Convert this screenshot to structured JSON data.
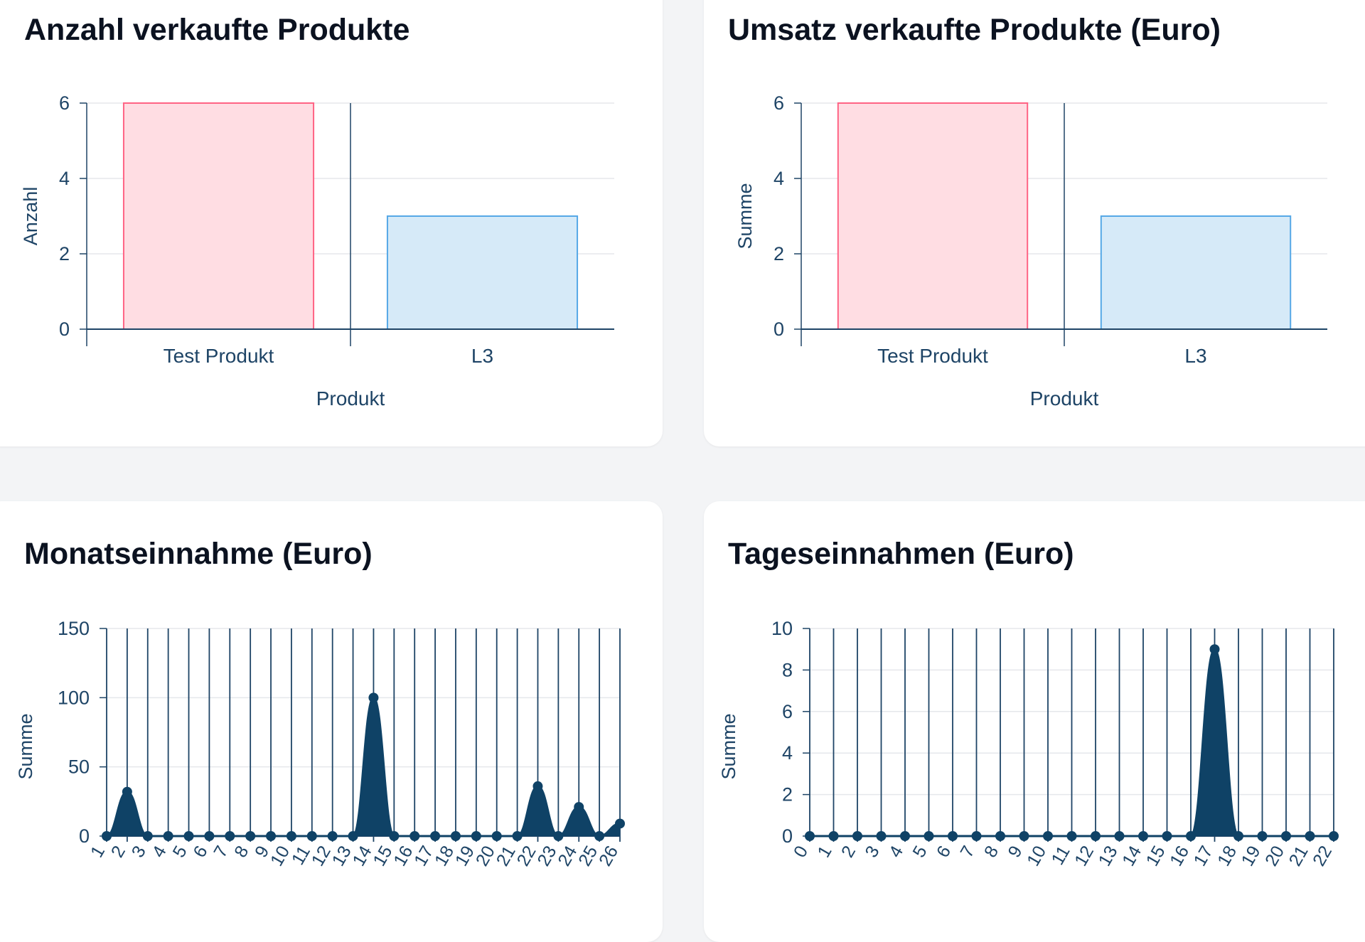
{
  "cards": {
    "sold_count": {
      "title": "Anzahl verkaufte Produkte"
    },
    "sold_revenue": {
      "title": "Umsatz verkaufte Produkte (Euro)"
    },
    "monthly": {
      "title": "Monatseinnahme (Euro)"
    },
    "daily": {
      "title": "Tageseinnahmen (Euro)"
    }
  },
  "colors": {
    "axis": "#1e4466",
    "grid": "#e5e7eb",
    "bar1_fill": "#ffdde3",
    "bar1_stroke": "#ff6384",
    "bar2_fill": "#d6eaf8",
    "bar2_stroke": "#56a8e6",
    "line": "#0f4266"
  },
  "chart_data": [
    {
      "type": "bar",
      "title": "Anzahl verkaufte Produkte",
      "categories": [
        "Test Produkt",
        "L3"
      ],
      "values": [
        6,
        3
      ],
      "xlabel": "Produkt",
      "ylabel": "Anzahl",
      "ylim": [
        0,
        6
      ],
      "yticks": [
        0,
        2,
        4,
        6
      ],
      "grid": true,
      "legend": "none"
    },
    {
      "type": "bar",
      "title": "Umsatz verkaufte Produkte (Euro)",
      "categories": [
        "Test Produkt",
        "L3"
      ],
      "values": [
        6,
        3
      ],
      "xlabel": "Produkt",
      "ylabel": "Summe",
      "ylim": [
        0,
        6
      ],
      "yticks": [
        0,
        2,
        4,
        6
      ],
      "grid": true,
      "legend": "none"
    },
    {
      "type": "area",
      "title": "Monatseinnahme (Euro)",
      "x": [
        "1",
        "2",
        "3",
        "4",
        "5",
        "6",
        "7",
        "8",
        "9",
        "10",
        "11",
        "12",
        "13",
        "14",
        "15",
        "16",
        "17",
        "18",
        "19",
        "20",
        "21",
        "22",
        "23",
        "24",
        "25",
        "26"
      ],
      "values": [
        0,
        32,
        0,
        0,
        0,
        0,
        0,
        0,
        0,
        0,
        0,
        0,
        0,
        100,
        0,
        0,
        0,
        0,
        0,
        0,
        0,
        36,
        0,
        21,
        0,
        9
      ],
      "xlabel": "",
      "ylabel": "Summe",
      "ylim": [
        0,
        150
      ],
      "yticks": [
        0,
        50,
        100,
        150
      ],
      "grid": true,
      "legend": "none"
    },
    {
      "type": "area",
      "title": "Tageseinnahmen (Euro)",
      "x": [
        "0",
        "1",
        "2",
        "3",
        "4",
        "5",
        "6",
        "7",
        "8",
        "9",
        "10",
        "11",
        "12",
        "13",
        "14",
        "15",
        "16",
        "17",
        "18",
        "19",
        "20",
        "21",
        "22"
      ],
      "values": [
        0,
        0,
        0,
        0,
        0,
        0,
        0,
        0,
        0,
        0,
        0,
        0,
        0,
        0,
        0,
        0,
        0,
        9,
        0,
        0,
        0,
        0,
        0
      ],
      "xlabel": "",
      "ylabel": "Summe",
      "ylim": [
        0,
        10
      ],
      "yticks": [
        0,
        2,
        4,
        6,
        8,
        10
      ],
      "grid": true,
      "legend": "none"
    }
  ]
}
